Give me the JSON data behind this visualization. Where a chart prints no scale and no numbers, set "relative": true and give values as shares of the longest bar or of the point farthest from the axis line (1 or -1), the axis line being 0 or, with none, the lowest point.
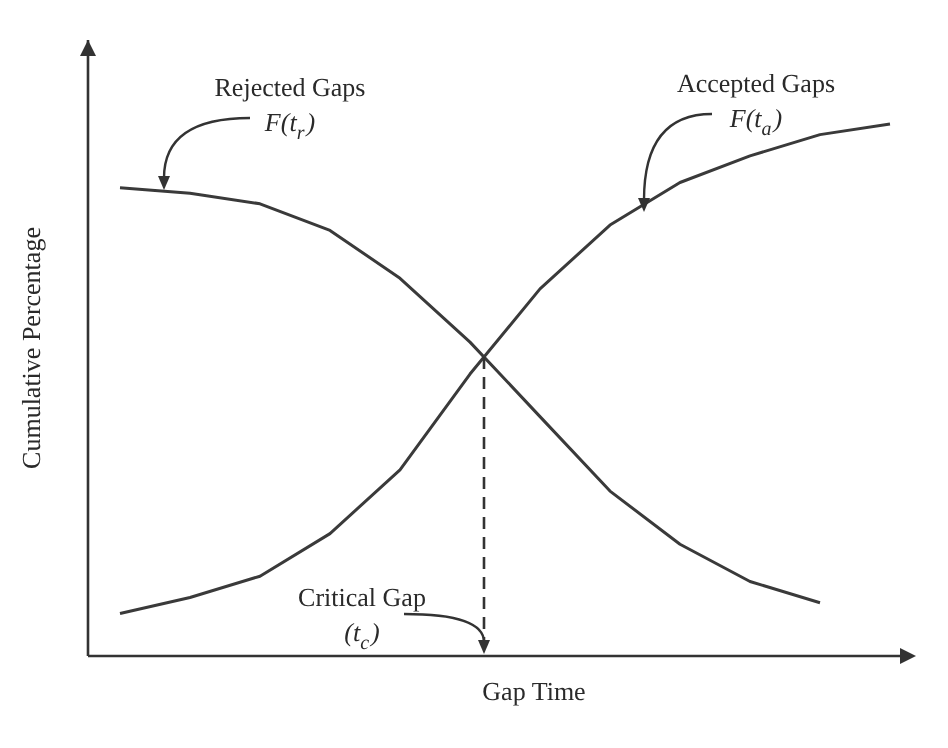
{
  "chart_data": {
    "type": "line",
    "relative": true,
    "xlabel": "Gap Time",
    "ylabel": "Cumulative Percentage",
    "line_style": "solid",
    "categories": [
      null,
      null,
      null,
      null,
      null,
      null,
      null,
      null,
      null,
      null,
      null,
      null
    ],
    "series": [
      {
        "color": "#3a3a3a",
        "values": [
          0.88,
          0.87,
          0.85,
          0.8,
          0.71,
          0.59,
          0.45,
          0.31,
          0.21,
          0.14,
          0.1,
          null
        ]
      },
      {
        "color": "#3a3a3a",
        "values": [
          0.08,
          0.11,
          0.15,
          0.23,
          0.35,
          0.53,
          0.69,
          0.81,
          0.89,
          0.94,
          0.98,
          1
        ]
      }
    ],
    "annotations": [
      "Rejected Gaps\nF(t$_{r}$)",
      "Accepted Gaps\nF(t$_{a}$)",
      "Critical Gap\n(t$_{c}$)"
    ]
  }
}
